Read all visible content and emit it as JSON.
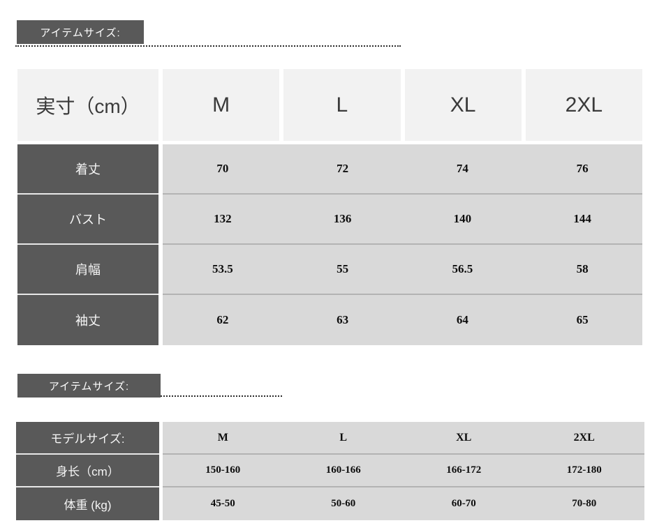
{
  "colors": {
    "dark_cell": "#595959",
    "light_cell": "#d9d9d9",
    "header_cell": "#f2f2f2",
    "heading_text": "#ffffff",
    "value_text": "#0d0d0d"
  },
  "section1": {
    "heading": "アイテムサイズ:",
    "table": {
      "corner": "実寸（cm）",
      "columns": [
        "M",
        "L",
        "XL",
        "2XL"
      ],
      "rows": [
        {
          "label": "着丈",
          "values": [
            "70",
            "72",
            "74",
            "76"
          ]
        },
        {
          "label": "バスト",
          "values": [
            "132",
            "136",
            "140",
            "144"
          ]
        },
        {
          "label": "肩幅",
          "values": [
            "53.5",
            "55",
            "56.5",
            "58"
          ]
        },
        {
          "label": "袖丈",
          "values": [
            "62",
            "63",
            "64",
            "65"
          ]
        }
      ]
    }
  },
  "section2": {
    "heading": "アイテムサイズ:",
    "table": {
      "corner": "モデルサイズ:",
      "columns": [
        "M",
        "L",
        "XL",
        "2XL"
      ],
      "rows": [
        {
          "label": "身长（cm）",
          "values": [
            "150-160",
            "160-166",
            "166-172",
            "172-180"
          ]
        },
        {
          "label": "体重 (kg)",
          "values": [
            "45-50",
            "50-60",
            "60-70",
            "70-80"
          ]
        }
      ]
    }
  }
}
